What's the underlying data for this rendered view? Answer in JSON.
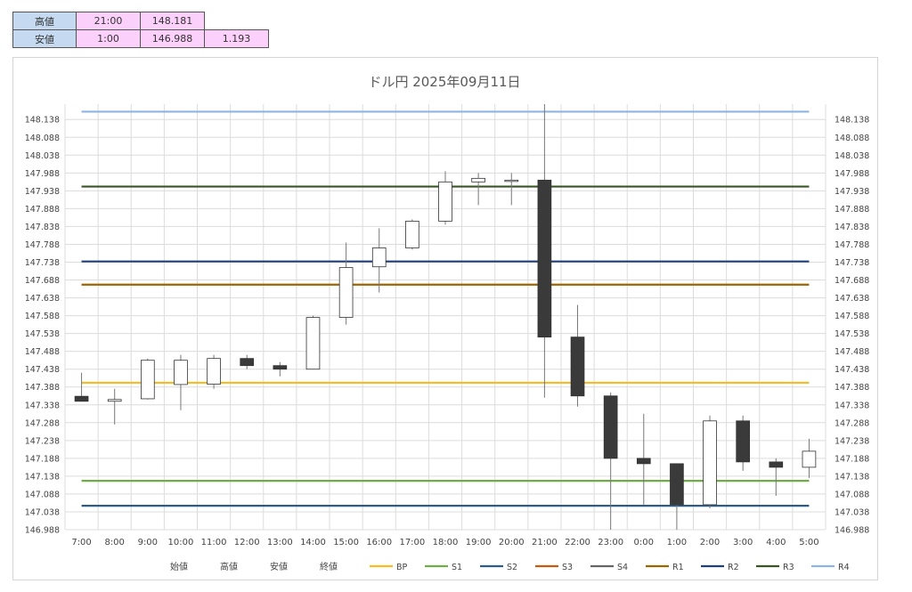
{
  "summary": {
    "rows": [
      {
        "label": "高値",
        "time": "21:00",
        "price": "148.181",
        "extra": ""
      },
      {
        "label": "安値",
        "time": "1:00",
        "price": "146.988",
        "extra": "1.193"
      }
    ]
  },
  "chart_data": {
    "type": "candlestick",
    "title": "ドル円 2025年09月11日",
    "ylim": [
      146.988,
      148.181
    ],
    "y_ticks": [
      "148.138",
      "148.088",
      "148.038",
      "147.988",
      "147.938",
      "147.888",
      "147.838",
      "147.788",
      "147.738",
      "147.688",
      "147.638",
      "147.588",
      "147.538",
      "147.488",
      "147.438",
      "147.388",
      "147.338",
      "147.288",
      "147.238",
      "147.188",
      "147.138",
      "147.088",
      "147.038",
      "146.988"
    ],
    "categories": [
      "7:00",
      "8:00",
      "9:00",
      "10:00",
      "11:00",
      "12:00",
      "13:00",
      "14:00",
      "15:00",
      "16:00",
      "17:00",
      "18:00",
      "19:00",
      "20:00",
      "21:00",
      "22:00",
      "23:00",
      "0:00",
      "1:00",
      "2:00",
      "3:00",
      "4:00",
      "5:00"
    ],
    "open": [
      147.362,
      147.348,
      147.355,
      147.395,
      147.396,
      147.468,
      147.448,
      147.438,
      147.583,
      147.725,
      147.778,
      147.853,
      147.963,
      147.968,
      147.968,
      147.528,
      147.363,
      147.188,
      147.173,
      147.058,
      147.293,
      147.178,
      147.163
    ],
    "high": [
      147.428,
      147.383,
      147.468,
      147.478,
      147.478,
      147.478,
      147.458,
      147.588,
      147.793,
      147.833,
      147.858,
      147.993,
      147.988,
      147.988,
      148.181,
      147.618,
      147.373,
      147.313,
      147.173,
      147.308,
      147.308,
      147.188,
      147.243
    ],
    "low": [
      147.348,
      147.283,
      147.353,
      147.323,
      147.383,
      147.438,
      147.418,
      147.438,
      147.563,
      147.653,
      147.773,
      147.843,
      147.898,
      147.898,
      147.358,
      147.333,
      146.988,
      147.058,
      146.988,
      147.048,
      147.153,
      147.083,
      147.133
    ],
    "close": [
      147.348,
      147.353,
      147.463,
      147.463,
      147.468,
      147.448,
      147.438,
      147.583,
      147.723,
      147.778,
      147.853,
      147.963,
      147.973,
      147.968,
      147.528,
      147.363,
      147.188,
      147.173,
      147.058,
      147.293,
      147.178,
      147.163,
      147.208
    ],
    "series": [
      {
        "name": "始値"
      },
      {
        "name": "高値"
      },
      {
        "name": "安値"
      },
      {
        "name": "終値"
      },
      {
        "name": "BP",
        "value": 147.4,
        "color": "#f5bd1f"
      },
      {
        "name": "S1",
        "value": 147.125,
        "color": "#70ad47"
      },
      {
        "name": "S2",
        "value": 147.055,
        "color": "#2e5c8a"
      },
      {
        "name": "S3",
        "value": null,
        "color": "#c55a11"
      },
      {
        "name": "S4",
        "value": null,
        "color": "#666666"
      },
      {
        "name": "R1",
        "value": 147.675,
        "color": "#9c6500"
      },
      {
        "name": "R2",
        "value": 147.74,
        "color": "#1f3f7f"
      },
      {
        "name": "R3",
        "value": 147.95,
        "color": "#375623"
      },
      {
        "name": "R4",
        "value": 148.16,
        "color": "#8db4e2"
      }
    ],
    "colors": {
      "up_fill": "#ffffff",
      "down_fill": "#3a3a3a",
      "candle_stroke": "#333333",
      "wick": "#777777",
      "grid": "#dcdcdc"
    },
    "grid": true,
    "legend": "bottom"
  }
}
